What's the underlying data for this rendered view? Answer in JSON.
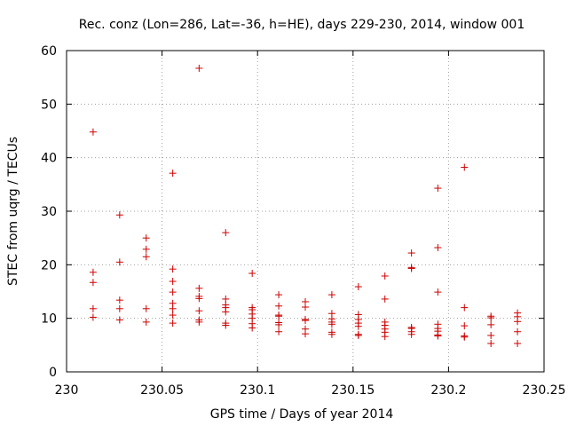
{
  "chart_data": {
    "type": "scatter",
    "title": "Rec. conz (Lon=286, Lat=-36, h=HE), days 229-230, 2014, window 001",
    "xlabel": "GPS time / Days of year 2014",
    "ylabel": "STEC from uqrg / TECUs",
    "xlim": [
      230,
      230.25
    ],
    "ylim": [
      0,
      60
    ],
    "xticks": [
      230,
      230.05,
      230.1,
      230.15,
      230.2,
      230.25
    ],
    "xtick_labels": [
      "230",
      "230.05",
      "230.1",
      "230.15",
      "230.2",
      "230.25"
    ],
    "yticks": [
      0,
      10,
      20,
      30,
      40,
      50,
      60
    ],
    "ytick_labels": [
      "0",
      "10",
      "20",
      "30",
      "40",
      "50",
      "60"
    ],
    "grid": true,
    "marker": "+",
    "colors": {
      "marker": "#cc0000",
      "grid": "#a0a0a0",
      "axis": "#000000"
    },
    "series": [
      {
        "name": "STEC",
        "points": [
          [
            230.0139,
            44.8
          ],
          [
            230.0139,
            18.6
          ],
          [
            230.0139,
            16.7
          ],
          [
            230.0139,
            11.8
          ],
          [
            230.0139,
            10.2
          ],
          [
            230.0278,
            29.3
          ],
          [
            230.0278,
            20.5
          ],
          [
            230.0278,
            13.4
          ],
          [
            230.0278,
            11.8
          ],
          [
            230.0278,
            9.7
          ],
          [
            230.0417,
            25.0
          ],
          [
            230.0417,
            22.9
          ],
          [
            230.0417,
            21.5
          ],
          [
            230.0417,
            11.8
          ],
          [
            230.0417,
            9.3
          ],
          [
            230.0556,
            37.1
          ],
          [
            230.0556,
            19.2
          ],
          [
            230.0556,
            16.9
          ],
          [
            230.0556,
            14.9
          ],
          [
            230.0556,
            12.8
          ],
          [
            230.0556,
            11.8
          ],
          [
            230.0556,
            10.6
          ],
          [
            230.0556,
            9.1
          ],
          [
            230.0694,
            56.7
          ],
          [
            230.0694,
            15.6
          ],
          [
            230.0694,
            14.1
          ],
          [
            230.0694,
            13.7
          ],
          [
            230.0694,
            11.4
          ],
          [
            230.0694,
            9.7
          ],
          [
            230.0694,
            9.3
          ],
          [
            230.0833,
            26.0
          ],
          [
            230.0833,
            13.6
          ],
          [
            230.0833,
            12.5
          ],
          [
            230.0833,
            12.0
          ],
          [
            230.0833,
            11.2
          ],
          [
            230.0833,
            9.1
          ],
          [
            230.0833,
            8.7
          ],
          [
            230.0972,
            18.4
          ],
          [
            230.0972,
            12.0
          ],
          [
            230.0972,
            11.6
          ],
          [
            230.0972,
            10.8
          ],
          [
            230.0972,
            10.0
          ],
          [
            230.0972,
            9.0
          ],
          [
            230.0972,
            8.2
          ],
          [
            230.1111,
            14.4
          ],
          [
            230.1111,
            12.3
          ],
          [
            230.1111,
            10.6
          ],
          [
            230.1111,
            10.4
          ],
          [
            230.1111,
            9.2
          ],
          [
            230.1111,
            8.8
          ],
          [
            230.1111,
            7.5
          ],
          [
            230.125,
            13.1
          ],
          [
            230.125,
            12.1
          ],
          [
            230.125,
            9.8
          ],
          [
            230.125,
            9.6
          ],
          [
            230.125,
            8.0
          ],
          [
            230.125,
            7.1
          ],
          [
            230.1389,
            14.4
          ],
          [
            230.1389,
            10.9
          ],
          [
            230.1389,
            9.9
          ],
          [
            230.1389,
            9.3
          ],
          [
            230.1389,
            8.9
          ],
          [
            230.1389,
            7.4
          ],
          [
            230.1389,
            7.0
          ],
          [
            230.1528,
            15.9
          ],
          [
            230.1528,
            10.7
          ],
          [
            230.1528,
            9.8
          ],
          [
            230.1528,
            9.1
          ],
          [
            230.1528,
            8.5
          ],
          [
            230.1528,
            7.0
          ],
          [
            230.1528,
            6.8
          ],
          [
            230.1667,
            17.9
          ],
          [
            230.1667,
            13.6
          ],
          [
            230.1667,
            9.3
          ],
          [
            230.1667,
            8.7
          ],
          [
            230.1667,
            8.0
          ],
          [
            230.1667,
            7.4
          ],
          [
            230.1667,
            6.6
          ],
          [
            230.1806,
            22.2
          ],
          [
            230.1806,
            19.5
          ],
          [
            230.1806,
            19.3
          ],
          [
            230.1806,
            8.3
          ],
          [
            230.1806,
            8.1
          ],
          [
            230.1806,
            7.5
          ],
          [
            230.1806,
            7.0
          ],
          [
            230.1944,
            34.3
          ],
          [
            230.1944,
            23.2
          ],
          [
            230.1944,
            14.9
          ],
          [
            230.1944,
            8.9
          ],
          [
            230.1944,
            8.1
          ],
          [
            230.1944,
            7.6
          ],
          [
            230.1944,
            6.9
          ],
          [
            230.1944,
            6.7
          ],
          [
            230.2083,
            38.2
          ],
          [
            230.2083,
            12.0
          ],
          [
            230.2083,
            8.6
          ],
          [
            230.2083,
            6.7
          ],
          [
            230.2083,
            6.5
          ],
          [
            230.2222,
            10.4
          ],
          [
            230.2222,
            10.1
          ],
          [
            230.2222,
            8.8
          ],
          [
            230.2222,
            6.8
          ],
          [
            230.2222,
            5.3
          ],
          [
            230.2361,
            11.0
          ],
          [
            230.2361,
            10.3
          ],
          [
            230.2361,
            9.4
          ],
          [
            230.2361,
            7.5
          ],
          [
            230.2361,
            5.3
          ]
        ]
      }
    ]
  }
}
